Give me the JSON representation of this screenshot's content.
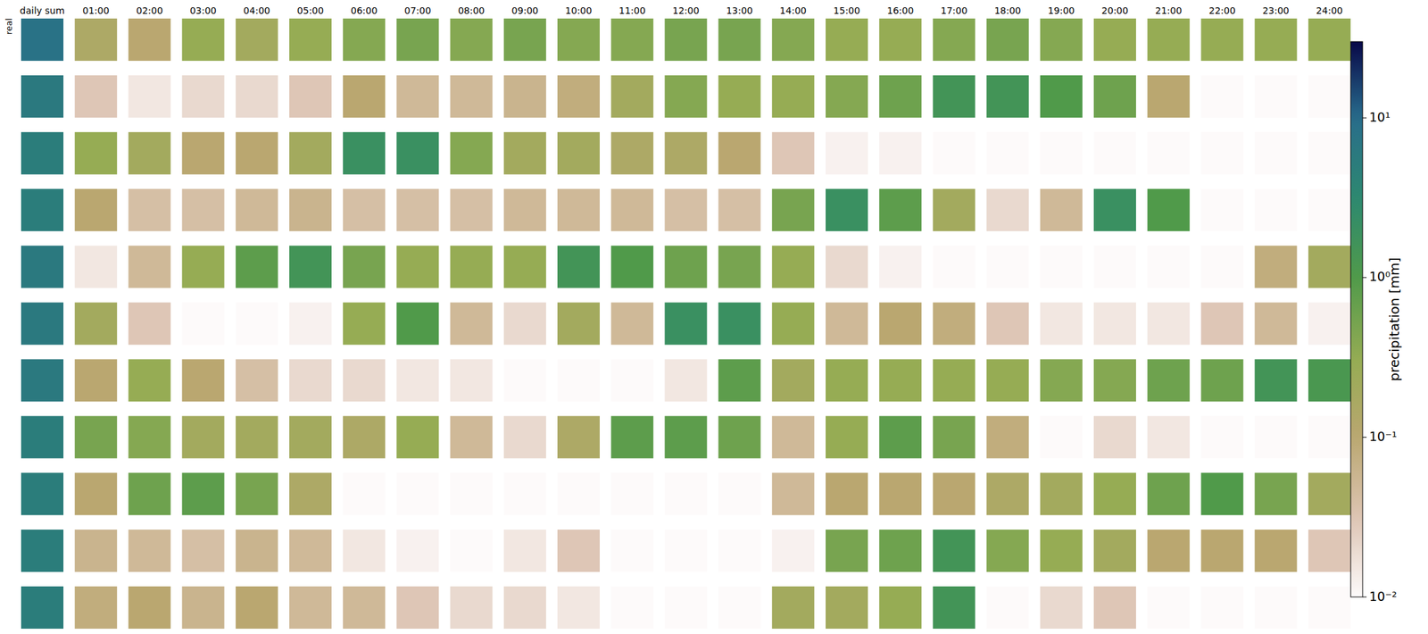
{
  "chart_data": {
    "type": "heatmap",
    "columns": [
      "daily sum",
      "01:00",
      "02:00",
      "03:00",
      "04:00",
      "05:00",
      "06:00",
      "07:00",
      "08:00",
      "09:00",
      "10:00",
      "11:00",
      "12:00",
      "13:00",
      "14:00",
      "15:00",
      "16:00",
      "17:00",
      "18:00",
      "19:00",
      "20:00",
      "21:00",
      "22:00",
      "23:00",
      "24:00"
    ],
    "row_labels": [
      "real",
      null,
      null,
      null,
      null,
      null,
      null,
      null,
      null,
      null,
      null
    ],
    "cells": [
      [
        8,
        0.15,
        0.1,
        0.3,
        0.2,
        0.3,
        0.4,
        0.5,
        0.4,
        0.5,
        0.4,
        0.4,
        0.5,
        0.5,
        0.4,
        0.3,
        0.3,
        0.4,
        0.5,
        0.4,
        0.3,
        0.3,
        0.3,
        0.3,
        0.3
      ],
      [
        6,
        0.03,
        0.015,
        0.02,
        0.02,
        0.03,
        0.1,
        0.05,
        0.05,
        0.06,
        0.08,
        0.2,
        0.4,
        0.3,
        0.3,
        0.4,
        0.6,
        1.5,
        1.5,
        1,
        0.6,
        0.1,
        0.01,
        0.01,
        0.01
      ],
      [
        5,
        0.3,
        0.2,
        0.1,
        0.1,
        0.2,
        2,
        2,
        0.4,
        0.2,
        0.2,
        0.15,
        0.15,
        0.1,
        0.03,
        0.012,
        0.012,
        0.01,
        0.01,
        0.01,
        0.01,
        0.01,
        0.01,
        0.01,
        0.01
      ],
      [
        5,
        0.1,
        0.04,
        0.04,
        0.05,
        0.06,
        0.04,
        0.04,
        0.04,
        0.05,
        0.05,
        0.05,
        0.04,
        0.04,
        0.5,
        2,
        0.8,
        0.2,
        0.02,
        0.05,
        2,
        1,
        0.01,
        0.01,
        0.01
      ],
      [
        6,
        0.015,
        0.05,
        0.3,
        0.8,
        1.5,
        0.5,
        0.3,
        0.3,
        0.3,
        1.5,
        1,
        0.6,
        0.5,
        0.3,
        0.02,
        0.012,
        0.01,
        0.01,
        0.01,
        0.01,
        0.01,
        0.01,
        0.08,
        0.2
      ],
      [
        6,
        0.2,
        0.03,
        0.01,
        0.01,
        0.012,
        0.3,
        1,
        0.05,
        0.02,
        0.2,
        0.05,
        2,
        2,
        0.3,
        0.05,
        0.1,
        0.08,
        0.03,
        0.015,
        0.015,
        0.015,
        0.03,
        0.05,
        0.012
      ],
      [
        6,
        0.1,
        0.3,
        0.1,
        0.04,
        0.02,
        0.02,
        0.015,
        0.015,
        0.01,
        0.01,
        0.01,
        0.015,
        0.8,
        0.2,
        0.3,
        0.3,
        0.3,
        0.3,
        0.4,
        0.4,
        0.6,
        0.6,
        1.5,
        1.2
      ],
      [
        5,
        0.5,
        0.4,
        0.2,
        0.2,
        0.2,
        0.15,
        0.3,
        0.05,
        0.02,
        0.15,
        0.8,
        0.8,
        0.6,
        0.05,
        0.3,
        0.8,
        0.5,
        0.08,
        0.01,
        0.02,
        0.015,
        0.01,
        0.01,
        0.01
      ],
      [
        5,
        0.1,
        0.6,
        0.8,
        0.5,
        0.15,
        0.01,
        0.01,
        0.01,
        0.01,
        0.01,
        0.01,
        0.01,
        0.01,
        0.05,
        0.1,
        0.1,
        0.1,
        0.15,
        0.2,
        0.3,
        0.6,
        1,
        0.5,
        0.2
      ],
      [
        5,
        0.06,
        0.05,
        0.04,
        0.06,
        0.05,
        0.015,
        0.012,
        0.01,
        0.015,
        0.03,
        0.01,
        0.01,
        0.01,
        0.012,
        0.5,
        0.6,
        1.5,
        0.4,
        0.3,
        0.2,
        0.1,
        0.1,
        0.1,
        0.03
      ],
      [
        5,
        0.08,
        0.1,
        0.06,
        0.1,
        0.05,
        0.05,
        0.03,
        0.02,
        0.02,
        0.015,
        0.01,
        0.01,
        0.01,
        0.2,
        0.2,
        0.3,
        1.5,
        0.01,
        0.02,
        0.03,
        0.01,
        0.01,
        0.01,
        0.01
      ]
    ],
    "log": true,
    "colorbar": {
      "label": "precipitation [mm]",
      "range": [
        0.01,
        30
      ],
      "ticks": [
        {
          "value": 0.01,
          "label": "10⁻²"
        },
        {
          "value": 0.1,
          "label": "10⁻¹"
        },
        {
          "value": 1,
          "label": "10⁰"
        },
        {
          "value": 10,
          "label": "10¹"
        }
      ]
    }
  }
}
